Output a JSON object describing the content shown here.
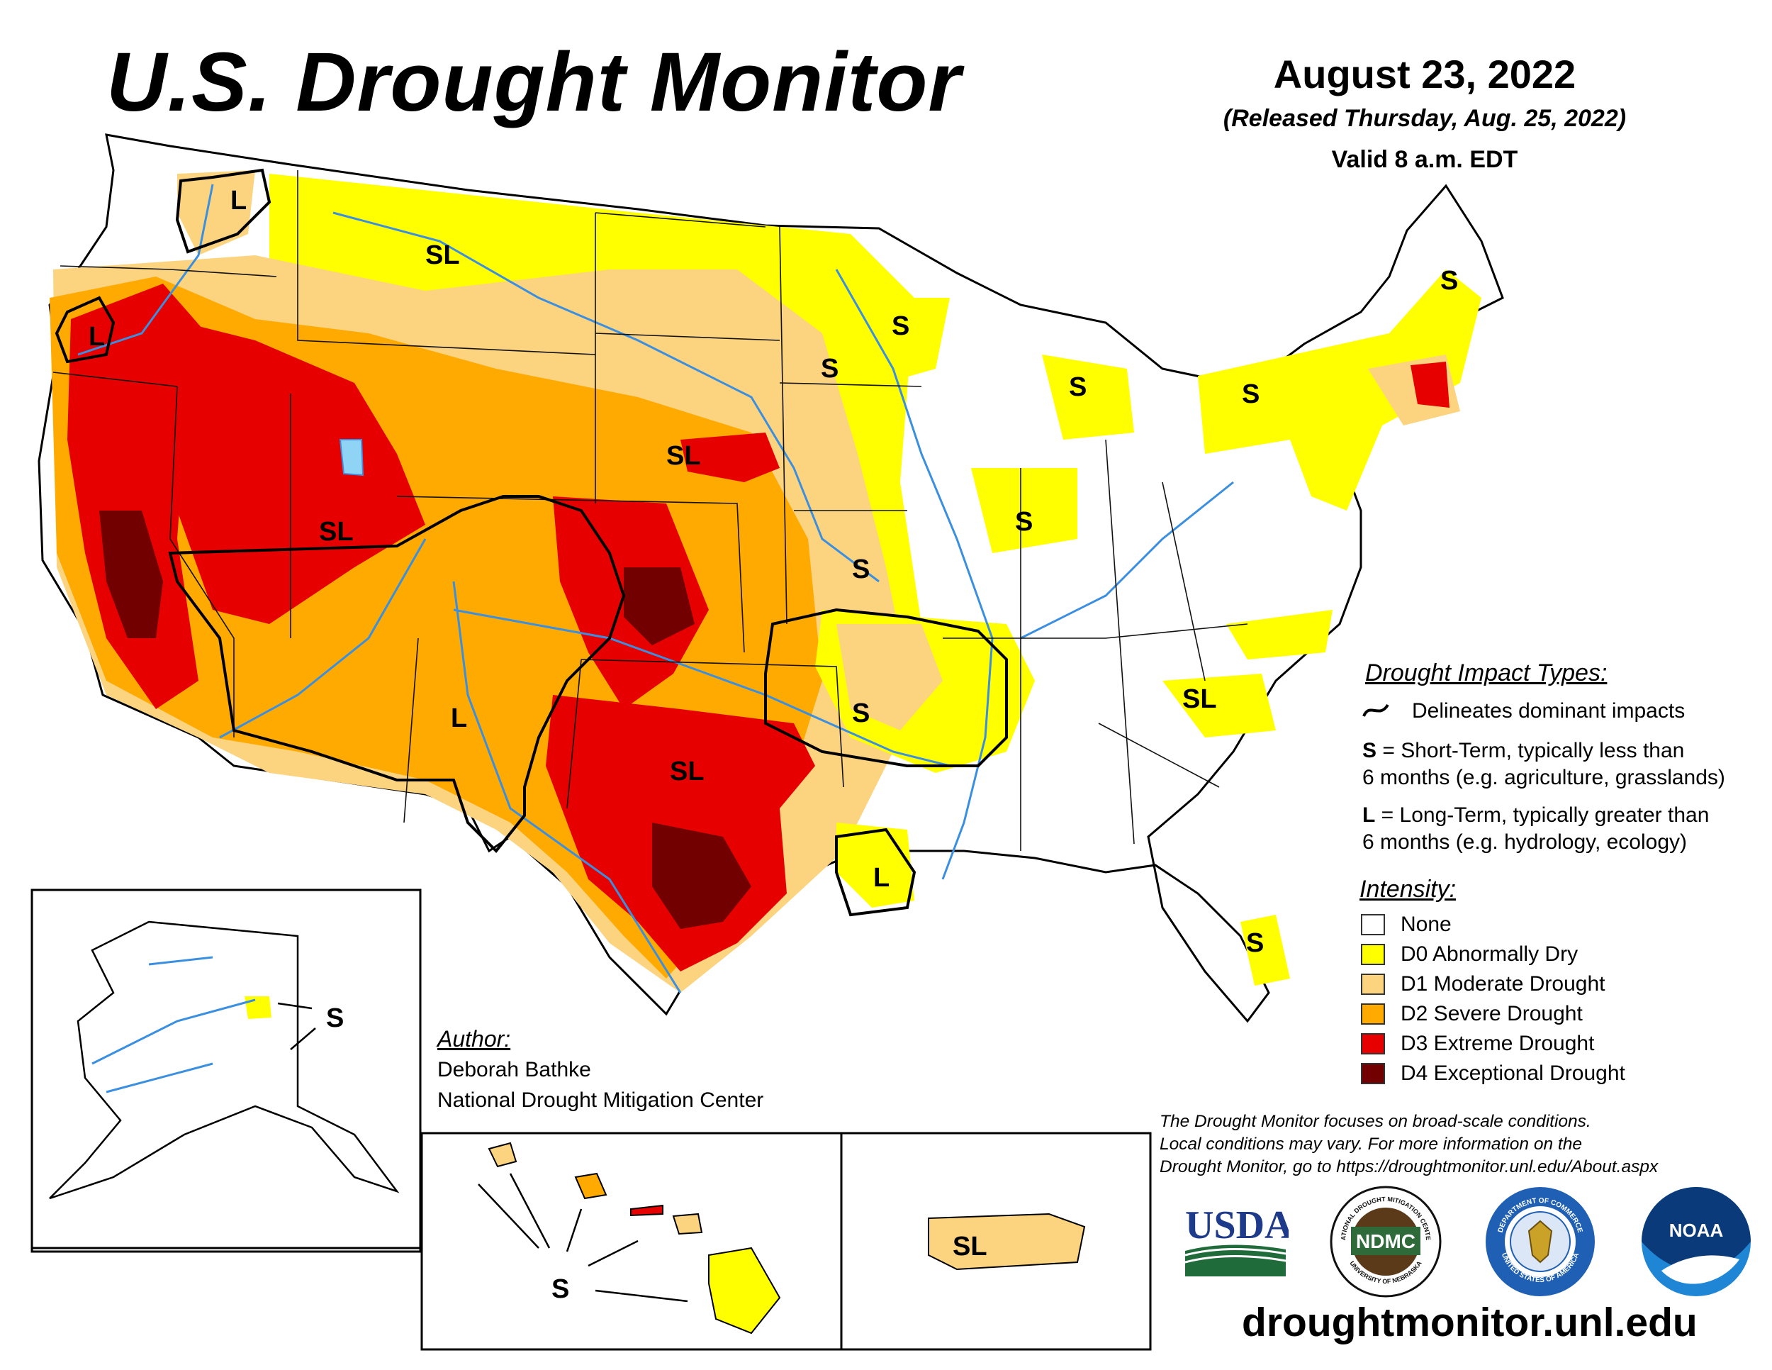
{
  "header": {
    "title": "U.S. Drought Monitor",
    "date": "August 23, 2022",
    "released": "(Released Thursday, Aug. 25, 2022)",
    "valid": "Valid 8 a.m. EDT"
  },
  "impacts": {
    "heading": "Drought Impact Types:",
    "delineates": "Delineates dominant impacts",
    "s_key": "S",
    "s_text_1": " = Short-Term, typically less than",
    "s_text_2": "6 months (e.g. agriculture, grasslands)",
    "l_key": "L",
    "l_text_1": " = Long-Term, typically greater than",
    "l_text_2": "6 months (e.g. hydrology, ecology)"
  },
  "intensity": {
    "heading": "Intensity:",
    "levels": [
      {
        "label": "None",
        "color": "#ffffff"
      },
      {
        "label": "D0 Abnormally Dry",
        "color": "#ffff00"
      },
      {
        "label": "D1 Moderate Drought",
        "color": "#fcd37f"
      },
      {
        "label": "D2 Severe Drought",
        "color": "#ffaa00"
      },
      {
        "label": "D3 Extreme Drought",
        "color": "#e60000"
      },
      {
        "label": "D4 Exceptional Drought",
        "color": "#730000"
      }
    ]
  },
  "author": {
    "heading": "Author:",
    "name": "Deborah Bathke",
    "org": "National Drought Mitigation Center"
  },
  "note": {
    "line1": "The Drought Monitor focuses on broad-scale conditions.",
    "line2": "Local conditions may vary. For more information on the",
    "line3": "Drought Monitor, go to https://droughtmonitor.unl.edu/About.aspx"
  },
  "logos": {
    "usda": "USDA",
    "ndmc": "NDMC",
    "ndmc_ring_top": "NATIONAL DROUGHT MITIGATION CENTER",
    "ndmc_ring_bottom": "UNIVERSITY OF NEBRASKA",
    "commerce_ring_top": "DEPARTMENT OF COMMERCE",
    "commerce_ring_bottom": "UNITED STATES OF AMERICA",
    "noaa": "NOAA"
  },
  "url": "droughtmonitor.unl.edu",
  "map_labels": {
    "wa": "L",
    "or": "L",
    "mt": "SL",
    "ut": "SL",
    "sd": "SL",
    "nm": "L",
    "ok": "SL",
    "la": "L",
    "ar": "S",
    "mo": "S",
    "mn": "S",
    "wi": "S",
    "mi": "S",
    "il": "S",
    "ny": "S",
    "me": "S",
    "sc": "SL",
    "fl": "S",
    "ak": "S",
    "hi": "S",
    "pr": "SL"
  },
  "colors": {
    "none": "#ffffff",
    "d0": "#ffff00",
    "d1": "#fcd37f",
    "d2": "#ffaa00",
    "d3": "#e60000",
    "d4": "#730000",
    "water": "#3b8fe0"
  }
}
